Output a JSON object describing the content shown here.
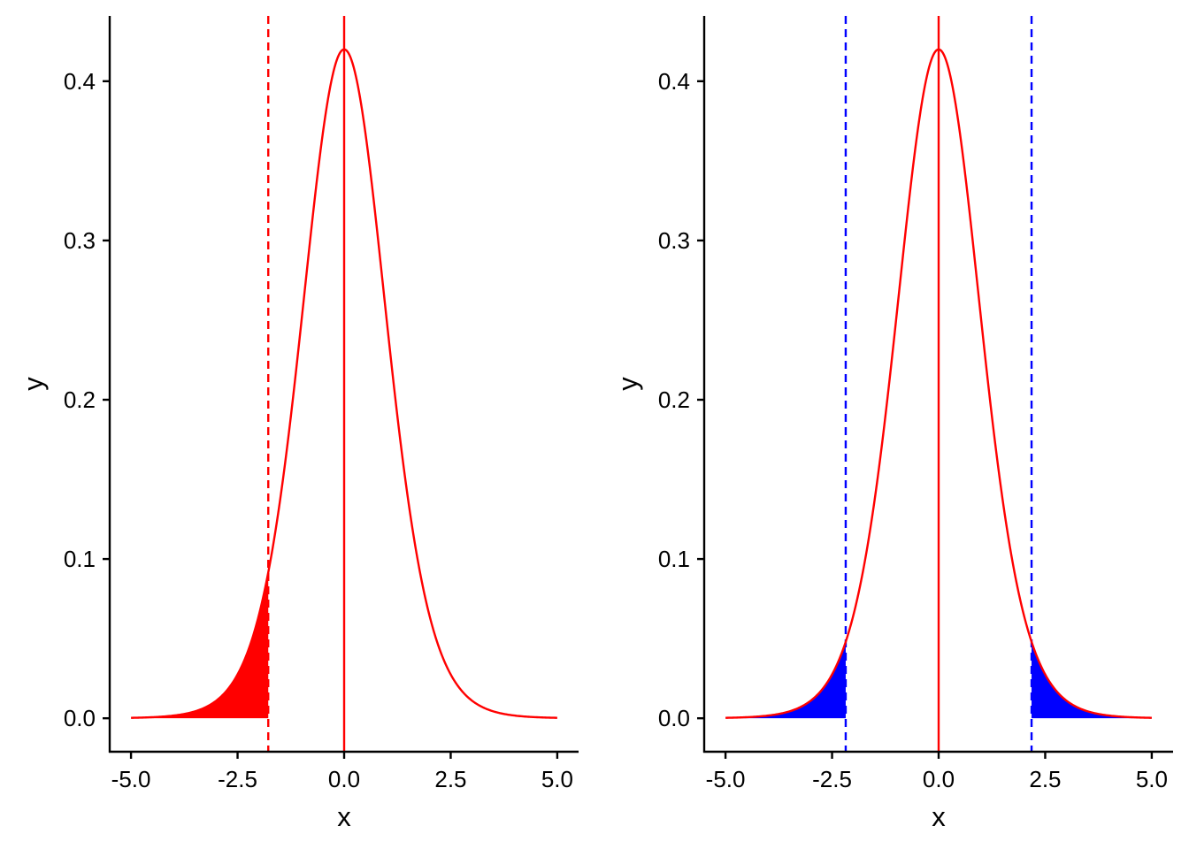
{
  "colors": {
    "curve": "#ff0000",
    "mean_line": "#ff0000",
    "axis": "#000000",
    "left_shade": "#ff0000",
    "right_shade": "#0000ff"
  },
  "chart_data": [
    {
      "type": "area",
      "panel": "left",
      "curve": "t-distribution density (df approx. 12)",
      "df": 12,
      "x_range": [
        -5,
        5
      ],
      "xlim": [
        -5.5,
        5.5
      ],
      "ylim": [
        -0.021,
        0.441
      ],
      "xticks": [
        -5,
        -2.5,
        0,
        2.5,
        5
      ],
      "xtick_labels": [
        "-5.0",
        "-2.5",
        "0.0",
        "2.5",
        "5.0"
      ],
      "yticks": [
        0,
        0.1,
        0.2,
        0.3,
        0.4
      ],
      "ytick_labels": [
        "0.0",
        "0.1",
        "0.2",
        "0.3",
        "0.4"
      ],
      "xlabel": "x",
      "ylabel": "y",
      "peak": {
        "x": 0,
        "y": 0.42
      },
      "mean_line": {
        "x": 0,
        "style": "solid",
        "color": "#ff0000"
      },
      "critical_lines": [
        {
          "x": -1.78,
          "style": "dashed",
          "color": "#ff0000"
        }
      ],
      "shaded_regions": [
        {
          "from": -5,
          "to": -1.78,
          "color": "#ff0000"
        }
      ],
      "legend": "none",
      "grid": false
    },
    {
      "type": "area",
      "panel": "right",
      "curve": "t-distribution density (df approx. 12)",
      "df": 12,
      "x_range": [
        -5,
        5
      ],
      "xlim": [
        -5.5,
        5.5
      ],
      "ylim": [
        -0.021,
        0.441
      ],
      "xticks": [
        -5,
        -2.5,
        0,
        2.5,
        5
      ],
      "xtick_labels": [
        "-5.0",
        "-2.5",
        "0.0",
        "2.5",
        "5.0"
      ],
      "yticks": [
        0,
        0.1,
        0.2,
        0.3,
        0.4
      ],
      "ytick_labels": [
        "0.0",
        "0.1",
        "0.2",
        "0.3",
        "0.4"
      ],
      "xlabel": "x",
      "ylabel": "y",
      "peak": {
        "x": 0,
        "y": 0.42
      },
      "mean_line": {
        "x": 0,
        "style": "solid",
        "color": "#ff0000"
      },
      "critical_lines": [
        {
          "x": -2.18,
          "style": "dashed",
          "color": "#0000ff"
        },
        {
          "x": 2.18,
          "style": "dashed",
          "color": "#0000ff"
        }
      ],
      "shaded_regions": [
        {
          "from": -5,
          "to": -2.18,
          "color": "#0000ff"
        },
        {
          "from": 2.18,
          "to": 5,
          "color": "#0000ff"
        }
      ],
      "legend": "none",
      "grid": false
    }
  ]
}
